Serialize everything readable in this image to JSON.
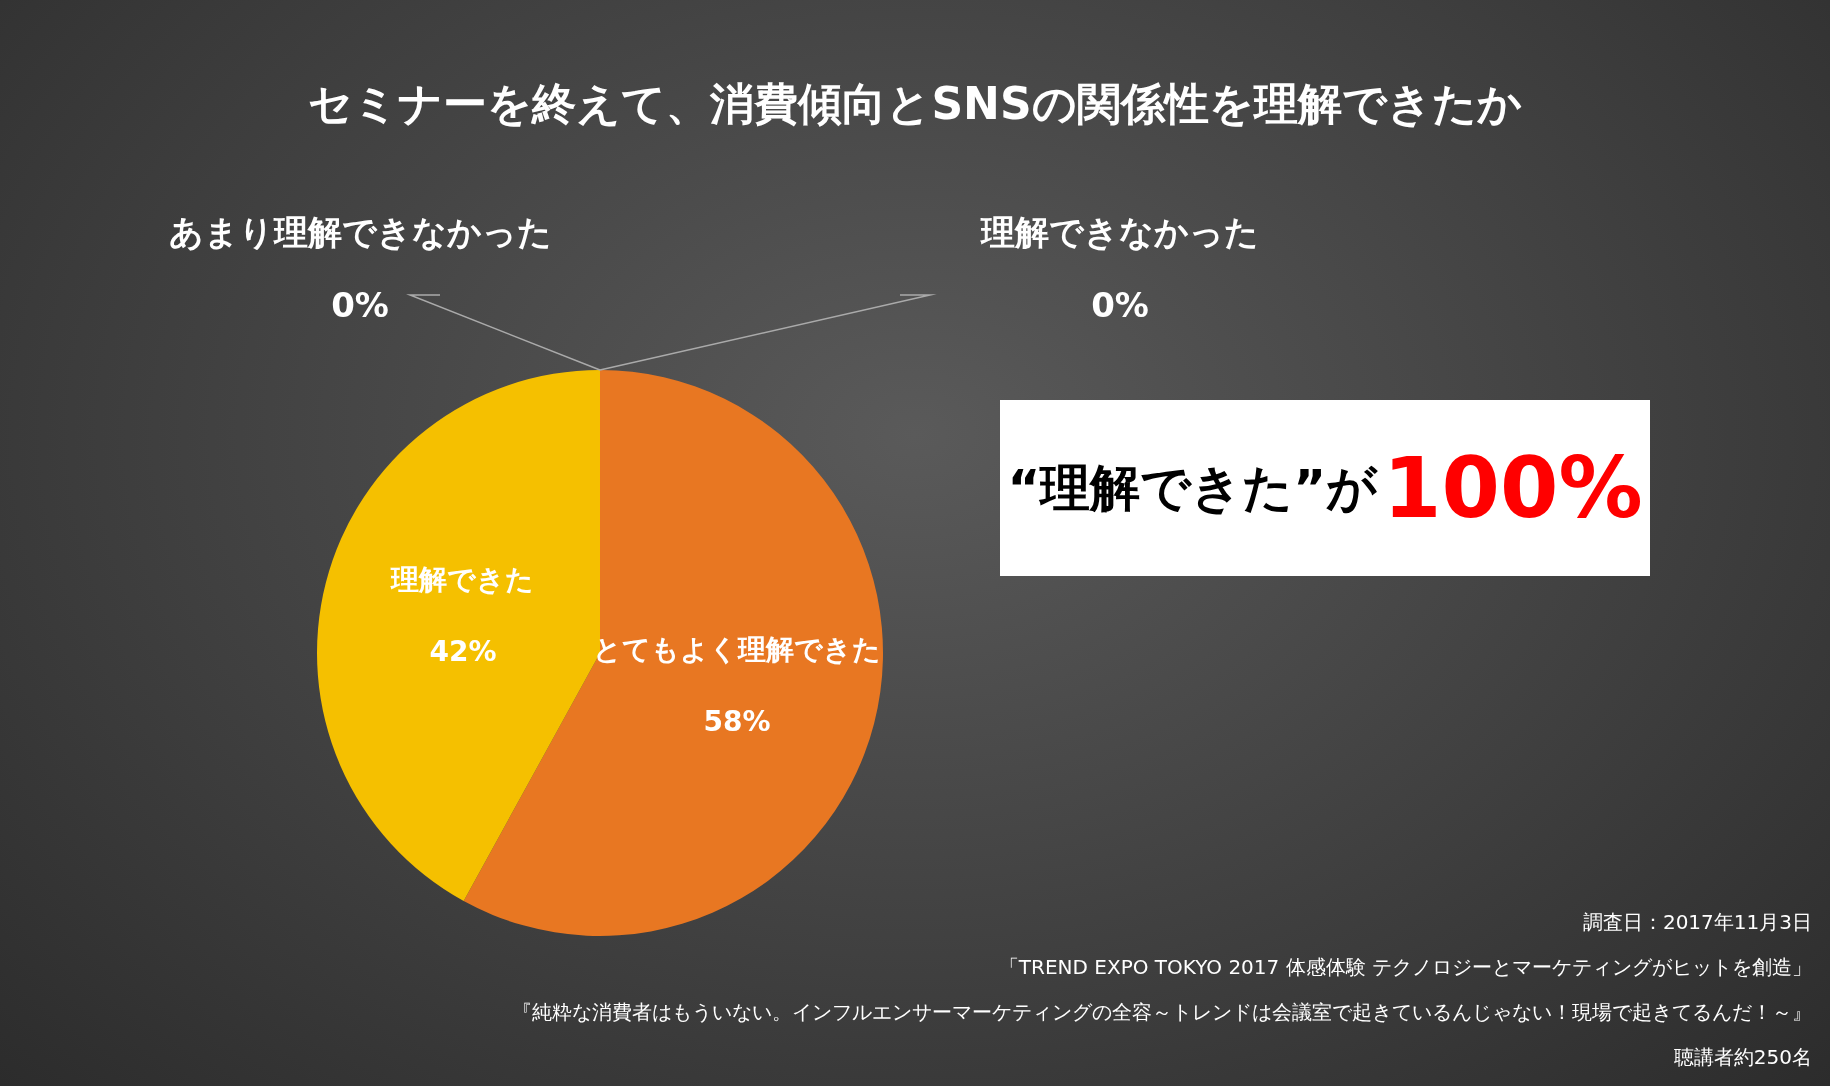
{
  "chart_data": {
    "type": "pie",
    "title": "セミナーを終えて、消費傾向とSNSの関係性を理解できたか",
    "categories": [
      "とてもよく理解できた",
      "理解できた",
      "あまり理解できなかった",
      "理解できなかった"
    ],
    "values": [
      58,
      42,
      0,
      0
    ],
    "value_labels": [
      "58%",
      "42%",
      "0%",
      "0%"
    ],
    "colors": [
      "#e87722",
      "#f5c000",
      "#b0b0b0",
      "#808080"
    ],
    "legend": false,
    "annotations": [
      "“理解できた”が",
      "100%",
      "調査日：2017年11月3日",
      "「TREND EXPO TOKYO 2017 体感体験 テクノロジーとマーケティングがヒットを創造」",
      "『純粋な消費者はもういない。インフルエンサーマーケティングの全容～トレンドは会議室で起きているんじゃない！現場で起きてるんだ！～』",
      "聴講者約250名"
    ]
  }
}
